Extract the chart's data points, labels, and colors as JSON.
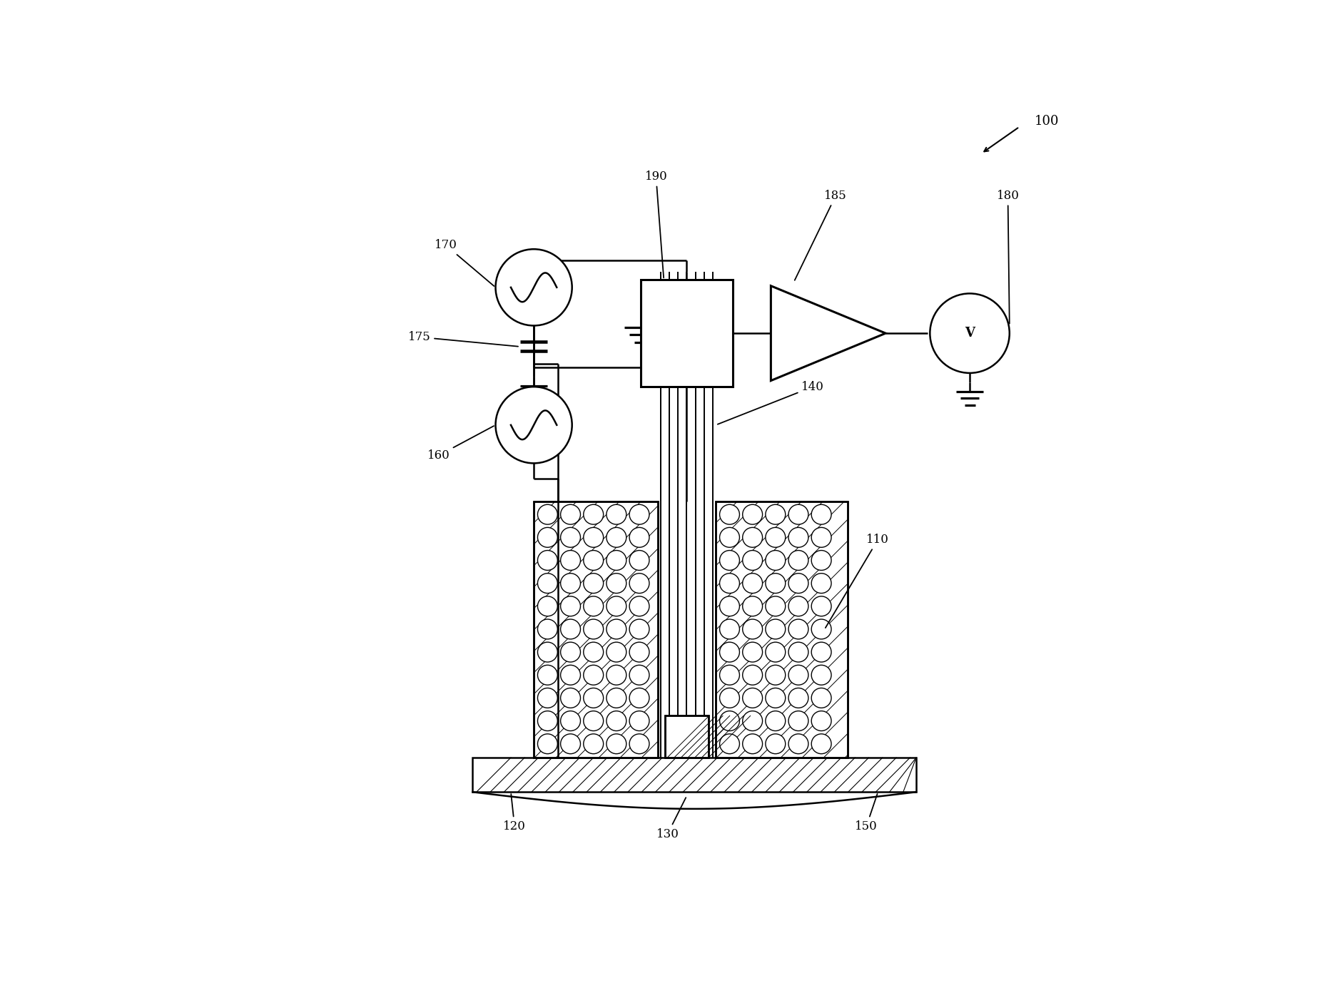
{
  "bg_color": "#ffffff",
  "line_color": "#000000",
  "label_100": "100",
  "label_110": "110",
  "label_120": "120",
  "label_130": "130",
  "label_140": "140",
  "label_150": "150",
  "label_160": "160",
  "label_170": "170",
  "label_175": "175",
  "label_180": "180",
  "label_185": "185",
  "label_190": "190",
  "figw": 18.78,
  "figh": 13.92,
  "dpi": 100
}
